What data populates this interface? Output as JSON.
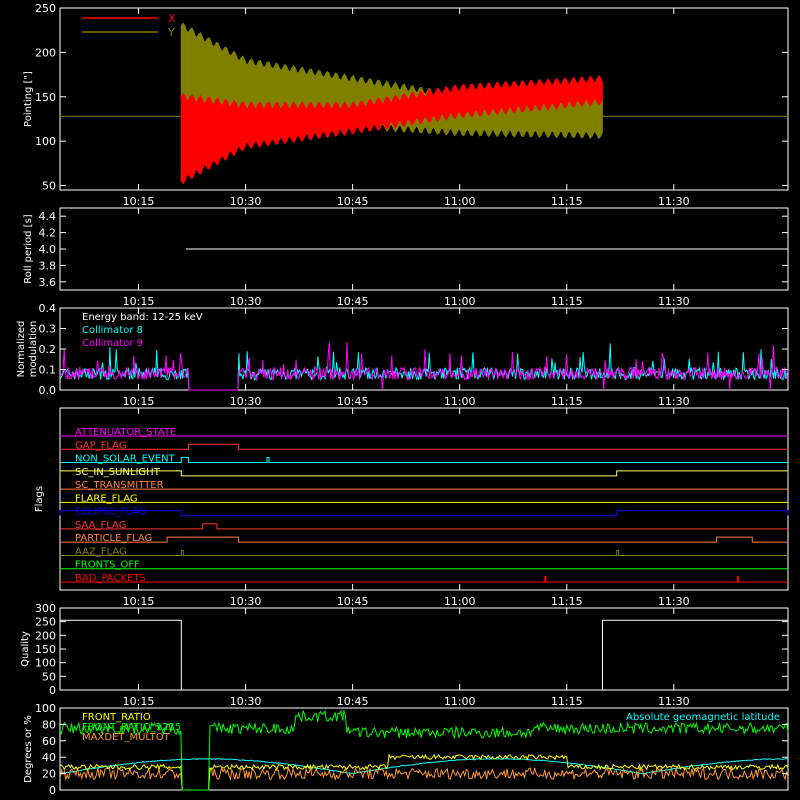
{
  "colors": {
    "x": "#ff0000",
    "y": "#808000",
    "white": "#ffffff",
    "cyan": "#00ffff",
    "magenta": "#ff00ff",
    "green": "#00ff00",
    "yellow": "#ffff00",
    "orange": "#ff9933"
  },
  "chart_data": [
    {
      "type": "line",
      "ylabel": "Pointing [\"]",
      "xlim": [
        "10:04",
        "11:46"
      ],
      "ylim": [
        45,
        250
      ],
      "x_ticks": [
        "10:15",
        "10:30",
        "10:45",
        "11:00",
        "11:15",
        "11:30"
      ],
      "y_ticks": [
        50,
        100,
        150,
        200,
        250
      ],
      "legend": [
        "X",
        "Y"
      ],
      "legend_placement": "top-left",
      "series": [
        {
          "name": "X",
          "color": "#ff0000",
          "envelope_x": [
            "10:21",
            "10:30",
            "10:45",
            "11:00",
            "11:20"
          ],
          "upper": [
            150,
            140,
            140,
            160,
            170
          ],
          "lower": [
            55,
            95,
            112,
            130,
            145
          ]
        },
        {
          "name": "Y",
          "color": "#808000",
          "envelope_x": [
            "10:21",
            "10:30",
            "10:45",
            "11:00",
            "11:20"
          ],
          "upper": [
            230,
            190,
            170,
            150,
            150
          ],
          "lower": [
            145,
            125,
            118,
            110,
            107
          ]
        }
      ],
      "baseline": 128
    },
    {
      "type": "line",
      "ylabel": "Roll period [s]",
      "ylim": [
        3.5,
        4.5
      ],
      "x_ticks": [
        "10:15",
        "10:30",
        "10:45",
        "11:00",
        "11:15",
        "11:30"
      ],
      "y_ticks": [
        "3.6",
        "3.8",
        "4.0",
        "4.2",
        "4.4"
      ],
      "series": [
        {
          "color": "#ffffff",
          "value": 4.0
        }
      ]
    },
    {
      "type": "line",
      "ylabel": [
        "Normalized",
        "modulation"
      ],
      "ylim": [
        0,
        0.4
      ],
      "x_ticks": [
        "10:15",
        "10:30",
        "10:45",
        "11:00",
        "11:15",
        "11:30"
      ],
      "y_ticks": [
        "0.0",
        "0.1",
        "0.2",
        "0.3",
        "0.4"
      ],
      "annotation": "Energy band: 12-25 keV",
      "legend": [
        "Collimator 8",
        "Collimator 9"
      ],
      "series": [
        {
          "name": "Collimator 8",
          "color": "#00ffff",
          "mean": 0.08
        },
        {
          "name": "Collimator 9",
          "color": "#ff00ff",
          "mean": 0.08
        }
      ],
      "gap": [
        "10:22",
        "10:29"
      ]
    },
    {
      "type": "line",
      "ylabel": "Flags",
      "x_ticks": [
        "10:15",
        "10:30",
        "10:45",
        "11:00",
        "11:15",
        "11:30"
      ],
      "flags": [
        {
          "label": "ATTENUATOR_STATE",
          "color": "#ff00ff",
          "on": []
        },
        {
          "label": "GAP_FLAG",
          "color": "#ff3333",
          "on": [
            [
              "10:22",
              "10:29"
            ]
          ]
        },
        {
          "label": "NON_SOLAR_EVENT",
          "color": "#00ffff",
          "on": [
            [
              "10:21",
              "10:22"
            ],
            [
              "10:33",
              "10:33"
            ]
          ]
        },
        {
          "label": "SC_IN_SUNLIGHT",
          "color": "#ffff66",
          "on": [
            [
              "10:04",
              "10:21"
            ],
            [
              "11:22",
              "11:46"
            ]
          ]
        },
        {
          "label": "SC_TRANSMITTER",
          "color": "#ff8040",
          "on": []
        },
        {
          "label": "FLARE_FLAG",
          "color": "#ffff00",
          "on": []
        },
        {
          "label": "ECLIPSE_FLAG",
          "color": "#0000ff",
          "on": [
            [
              "10:04",
              "10:21"
            ],
            [
              "11:22",
              "11:46"
            ]
          ]
        },
        {
          "label": "SAA_FLAG",
          "color": "#ff3333",
          "on": [
            [
              "10:24",
              "10:26"
            ]
          ]
        },
        {
          "label": "PARTICLE_FLAG",
          "color": "#ff8040",
          "on": [
            [
              "10:19",
              "10:29"
            ],
            [
              "11:36",
              "11:41"
            ]
          ]
        },
        {
          "label": "AAZ_FLAG",
          "color": "#808000",
          "on": [
            [
              "10:21",
              "10:21"
            ],
            [
              "11:22",
              "11:22"
            ]
          ]
        },
        {
          "label": "FRONTS_OFF",
          "color": "#00ff00",
          "on": []
        },
        {
          "label": "BAD_PACKETS",
          "color": "#ff0000",
          "spikes": [
            "11:12",
            "11:39"
          ]
        }
      ]
    },
    {
      "type": "line",
      "ylabel": "Quality",
      "ylim": [
        0,
        300
      ],
      "x_ticks": [
        "10:15",
        "10:30",
        "10:45",
        "11:00",
        "11:15",
        "11:30"
      ],
      "y_ticks": [
        0,
        50,
        100,
        150,
        200,
        250,
        300
      ],
      "series": [
        {
          "color": "#ffffff",
          "segments": [
            {
              "x": [
                "10:04",
                "10:21"
              ],
              "y": 255
            },
            {
              "x": [
                "11:20",
                "11:46"
              ],
              "y": 255
            }
          ]
        }
      ]
    },
    {
      "type": "line",
      "ylabel": "Degrees or %",
      "ylim": [
        0,
        100
      ],
      "y_ticks": [
        0,
        20,
        40,
        60,
        80,
        100
      ],
      "legend": [
        "FRONT_RATIO",
        "FRONT_RATIO_1225",
        "MAXDET_MULTOT"
      ],
      "annotation": "Absolute geomagnetic latitude",
      "series": [
        {
          "name": "FRONT_RATIO",
          "color": "#ffff00",
          "mean": 30
        },
        {
          "name": "FRONT_RATIO_1225",
          "color": "#00ff00",
          "mean": 75
        },
        {
          "name": "MAXDET_MULTOT",
          "color": "#ff9933",
          "mean": 20
        },
        {
          "name": "Absolute geomagnetic latitude",
          "color": "#00ffff",
          "mean": 30
        }
      ]
    }
  ]
}
